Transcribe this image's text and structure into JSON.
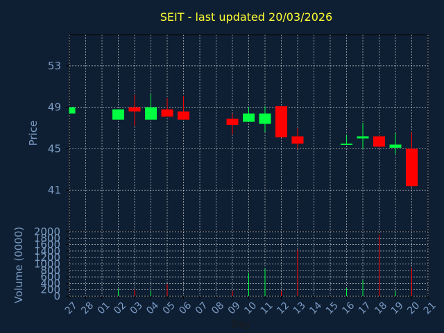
{
  "chart_data": {
    "type": "candlestick",
    "title": "SEIT - last updated 20/03/2026",
    "price_axis": {
      "ylabel": "Price",
      "ylim": [
        37,
        56
      ],
      "ticks": [
        41,
        45,
        49,
        53
      ]
    },
    "volume_axis": {
      "ylabel": "Volume (0000)",
      "ylim": [
        0,
        2000
      ],
      "ticks": [
        0,
        200,
        400,
        600,
        800,
        1000,
        1200,
        1400,
        1600,
        1800,
        2000
      ]
    },
    "xlabel": "Day",
    "day_labels": [
      "27",
      "28",
      "01",
      "02",
      "03",
      "04",
      "05",
      "06",
      "07",
      "08",
      "09",
      "10",
      "11",
      "12",
      "13",
      "14",
      "15",
      "16",
      "17",
      "18",
      "19",
      "20",
      "21"
    ],
    "candles": [
      {
        "day": "27",
        "open": 48.4,
        "close": 49.0,
        "high": 49.0,
        "low": 48.4,
        "volume": 0
      },
      {
        "day": "02",
        "open": 47.8,
        "close": 48.8,
        "high": 48.8,
        "low": 47.8,
        "volume": 220
      },
      {
        "day": "03",
        "open": 49.0,
        "close": 48.6,
        "high": 50.2,
        "low": 47.2,
        "volume": 200
      },
      {
        "day": "04",
        "open": 47.8,
        "close": 49.0,
        "high": 50.3,
        "low": 47.8,
        "volume": 170
      },
      {
        "day": "05",
        "open": 48.8,
        "close": 48.1,
        "high": 49.9,
        "low": 48.1,
        "volume": 380
      },
      {
        "day": "06",
        "open": 48.6,
        "close": 47.8,
        "high": 50.1,
        "low": 47.8,
        "volume": 0
      },
      {
        "day": "09",
        "open": 47.9,
        "close": 47.3,
        "high": 48.4,
        "low": 46.4,
        "volume": 170
      },
      {
        "day": "10",
        "open": 47.6,
        "close": 48.4,
        "high": 49.0,
        "low": 47.6,
        "volume": 730
      },
      {
        "day": "11",
        "open": 47.4,
        "close": 48.4,
        "high": 49.1,
        "low": 46.6,
        "volume": 860
      },
      {
        "day": "12",
        "open": 49.1,
        "close": 46.1,
        "high": 49.1,
        "low": 46.1,
        "volume": 160
      },
      {
        "day": "13",
        "open": 46.2,
        "close": 45.5,
        "high": 47.0,
        "low": 45.0,
        "volume": 1450
      },
      {
        "day": "16",
        "open": 45.4,
        "close": 45.5,
        "high": 46.3,
        "low": 45.4,
        "volume": 260
      },
      {
        "day": "17",
        "open": 46.0,
        "close": 46.2,
        "high": 47.5,
        "low": 45.0,
        "volume": 500
      },
      {
        "day": "18",
        "open": 46.2,
        "close": 45.2,
        "high": 46.3,
        "low": 45.1,
        "volume": 1920
      },
      {
        "day": "19",
        "open": 45.1,
        "close": 45.4,
        "high": 46.5,
        "low": 44.5,
        "volume": 150
      },
      {
        "day": "20",
        "open": 45.0,
        "close": 41.4,
        "high": 46.6,
        "low": 41.3,
        "volume": 870
      }
    ],
    "grid": true,
    "colors": {
      "up": "#00ff40",
      "down": "#ff0000",
      "background": "#0f1f33",
      "title": "#ffff33",
      "axis_text": "#7b9cc4",
      "grid": "#ffffff"
    }
  }
}
